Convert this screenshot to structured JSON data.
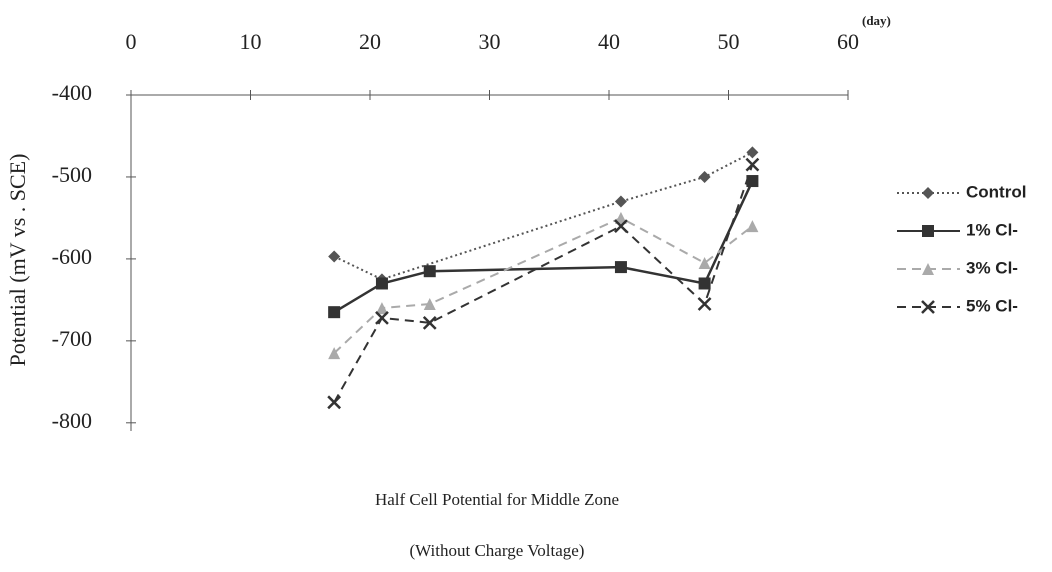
{
  "chart_data": {
    "type": "line",
    "title": "Half Cell Potential  for  Middle Zone",
    "subtitle": "(Without Charge Voltage)",
    "y_label": "Potential (mV vs . SCE)",
    "x_unit": "(day)",
    "xlim": [
      0,
      60
    ],
    "xticks": [
      0,
      10,
      20,
      30,
      40,
      50,
      60
    ],
    "ylim": [
      -810,
      -400
    ],
    "yticks": [
      -400,
      -500,
      -600,
      -700,
      -800
    ],
    "legend": "right",
    "series": [
      {
        "name": "Control",
        "color": "#555555",
        "marker": "diamond",
        "dash": "dotted",
        "x": [
          17,
          21,
          41,
          48,
          52
        ],
        "values": [
          -597,
          -625,
          -530,
          -500,
          -470
        ]
      },
      {
        "name": "1% Cl-",
        "color": "#333333",
        "marker": "square",
        "dash": "solid",
        "x": [
          17,
          21,
          25,
          41,
          48,
          52
        ],
        "values": [
          -665,
          -630,
          -615,
          -610,
          -630,
          -505
        ]
      },
      {
        "name": "3% Cl-",
        "color": "#aaaaaa",
        "marker": "triangle",
        "dash": "dashed",
        "x": [
          17,
          21,
          25,
          41,
          48,
          52
        ],
        "values": [
          -715,
          -660,
          -655,
          -550,
          -605,
          -560
        ]
      },
      {
        "name": "5% Cl-",
        "color": "#333333",
        "marker": "cross",
        "dash": "dashed",
        "x": [
          17,
          21,
          25,
          41,
          48,
          52
        ],
        "values": [
          -775,
          -672,
          -678,
          -560,
          -655,
          -485
        ]
      }
    ]
  }
}
